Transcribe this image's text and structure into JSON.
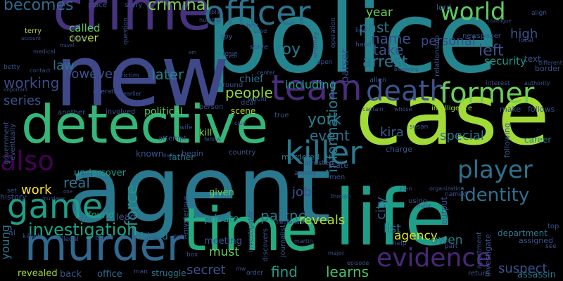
{
  "background": "#000000",
  "colormap": "viridis",
  "words": [
    {
      "text": "police",
      "color": "#25858e",
      "vertical": false
    },
    {
      "text": "agent",
      "color": "#2a788e",
      "vertical": false
    },
    {
      "text": "new",
      "color": "#3f4889",
      "vertical": false
    },
    {
      "text": "case",
      "color": "#a2da37",
      "vertical": false
    },
    {
      "text": "life",
      "color": "#1f9e89",
      "vertical": false
    },
    {
      "text": "time",
      "color": "#25ab82",
      "vertical": false
    },
    {
      "text": "detective",
      "color": "#35b779",
      "vertical": false
    },
    {
      "text": "crime",
      "color": "#46327e",
      "vertical": false
    },
    {
      "text": "murder",
      "color": "#31688e",
      "vertical": false
    },
    {
      "text": "killer",
      "color": "#2a788e",
      "vertical": false
    },
    {
      "text": "game",
      "color": "#1f9e89",
      "vertical": false
    },
    {
      "text": "team",
      "color": "#472d7b",
      "vertical": false
    },
    {
      "text": "death",
      "color": "#3b528b",
      "vertical": false
    },
    {
      "text": "former",
      "color": "#6ece58",
      "vertical": false
    },
    {
      "text": "officer",
      "color": "#2c738e",
      "vertical": false
    },
    {
      "text": "world",
      "color": "#5ec962",
      "vertical": false
    },
    {
      "text": "evidence",
      "color": "#482878",
      "vertical": false
    },
    {
      "text": "player",
      "color": "#2c728e",
      "vertical": false
    },
    {
      "text": "also",
      "color": "#440154",
      "vertical": false
    },
    {
      "text": "identity",
      "color": "#2d708e",
      "vertical": false
    },
    {
      "text": "investigation",
      "color": "#20a486",
      "vertical": false
    },
    {
      "text": "criminal",
      "color": "#7ad151",
      "vertical": false
    },
    {
      "text": "becomes",
      "color": "#31688e",
      "vertical": false
    },
    {
      "text": "called",
      "color": "#5ec962",
      "vertical": false
    },
    {
      "text": "cover",
      "color": "#c2df23",
      "vertical": false
    },
    {
      "text": "however",
      "color": "#3b528b",
      "vertical": false
    },
    {
      "text": "later",
      "color": "#26828e",
      "vertical": false
    },
    {
      "text": "working",
      "color": "#3e4989",
      "vertical": false
    },
    {
      "text": "series",
      "color": "#3b528b",
      "vertical": false
    },
    {
      "text": "law",
      "color": "#2a788e",
      "vertical": false
    },
    {
      "text": "people",
      "color": "#8fd744",
      "vertical": false
    },
    {
      "text": "chief",
      "color": "#2c738e",
      "vertical": false
    },
    {
      "text": "including",
      "color": "#1fa187",
      "vertical": false
    },
    {
      "text": "roy",
      "color": "#287c8e",
      "vertical": false
    },
    {
      "text": "arrest",
      "color": "#2c738e",
      "vertical": false
    },
    {
      "text": "take",
      "color": "#3b528b",
      "vertical": false
    },
    {
      "text": "name",
      "color": "#3b528b",
      "vertical": false
    },
    {
      "text": "past",
      "color": "#2a788e",
      "vertical": false
    },
    {
      "text": "year",
      "color": "#6ece58",
      "vertical": false
    },
    {
      "text": "york",
      "color": "#287d8e",
      "vertical": false
    },
    {
      "text": "event",
      "color": "#2c728e",
      "vertical": false
    },
    {
      "text": "kira",
      "color": "#365c8d",
      "vertical": false
    },
    {
      "text": "special",
      "color": "#2a788e",
      "vertical": false
    },
    {
      "text": "left",
      "color": "#3b528b",
      "vertical": false
    },
    {
      "text": "high",
      "color": "#3b528b",
      "vertical": false
    },
    {
      "text": "security",
      "color": "#1e9b8a",
      "vertical": false
    },
    {
      "text": "personal",
      "color": "#3e4989",
      "vertical": false
    },
    {
      "text": "information",
      "color": "#287c8e",
      "vertical": true
    },
    {
      "text": "parser",
      "color": "#3e4989",
      "vertical": true
    },
    {
      "text": "city",
      "color": "#365c8d",
      "vertical": true
    },
    {
      "text": "force",
      "color": "#21918c",
      "vertical": true
    },
    {
      "text": "work",
      "color": "#fde725",
      "vertical": false
    },
    {
      "text": "real",
      "color": "#2c728e",
      "vertical": false
    },
    {
      "text": "job",
      "color": "#3b528b",
      "vertical": false
    },
    {
      "text": "partner",
      "color": "#2a788e",
      "vertical": false
    },
    {
      "text": "reveals",
      "color": "#b5de2b",
      "vertical": false
    },
    {
      "text": "list",
      "color": "#2c728e",
      "vertical": false
    },
    {
      "text": "agency",
      "color": "#dde318",
      "vertical": false
    },
    {
      "text": "owen",
      "color": "#287d8e",
      "vertical": false
    },
    {
      "text": "suspect",
      "color": "#3b528b",
      "vertical": false
    },
    {
      "text": "secret",
      "color": "#3b528b",
      "vertical": false
    },
    {
      "text": "must",
      "color": "#6ece58",
      "vertical": false
    },
    {
      "text": "find",
      "color": "#1f9e89",
      "vertical": false
    },
    {
      "text": "learns",
      "color": "#4ac16d",
      "vertical": false
    },
    {
      "text": "young",
      "color": "#2a788e",
      "vertical": true
    },
    {
      "text": "history",
      "color": "#3b528b",
      "vertical": false
    },
    {
      "text": "undercover",
      "color": "#1f9e89",
      "vertical": false
    },
    {
      "text": "known",
      "color": "#3b528b",
      "vertical": false
    },
    {
      "text": "father",
      "color": "#287c8e",
      "vertical": false
    },
    {
      "text": "murdered",
      "color": "#2a788e",
      "vertical": false
    },
    {
      "text": "scene",
      "color": "#b5de2b",
      "vertical": false
    },
    {
      "text": "political",
      "color": "#5ec962",
      "vertical": false
    },
    {
      "text": "kill",
      "color": "#8fd744",
      "vertical": false
    },
    {
      "text": "private",
      "color": "#21918c",
      "vertical": false
    },
    {
      "text": "meeting",
      "color": "#3b528b",
      "vertical": false
    },
    {
      "text": "friend",
      "color": "#2a788e",
      "vertical": false
    },
    {
      "text": "found",
      "color": "#1f9e89",
      "vertical": false
    },
    {
      "text": "lead",
      "color": "#3b528b",
      "vertical": false
    },
    {
      "text": "given",
      "color": "#6ece58",
      "vertical": false
    },
    {
      "text": "end",
      "color": "#3b528b",
      "vertical": false
    },
    {
      "text": "office",
      "color": "#31688e",
      "vertical": false
    },
    {
      "text": "revealed",
      "color": "#9fda3a",
      "vertical": false
    },
    {
      "text": "back",
      "color": "#3b528b",
      "vertical": false
    },
    {
      "text": "struggle",
      "color": "#2a788e",
      "vertical": false
    },
    {
      "text": "department",
      "color": "#2a788e",
      "vertical": false
    },
    {
      "text": "assigned",
      "color": "#3b528b",
      "vertical": false
    },
    {
      "text": "assassin",
      "color": "#2a788e",
      "vertical": false
    },
    {
      "text": "career",
      "color": "#2a788e",
      "vertical": false
    },
    {
      "text": "follows",
      "color": "#3b528b",
      "vertical": false
    },
    {
      "text": "make",
      "color": "#3b528b",
      "vertical": false
    },
    {
      "text": "intelligence",
      "color": "#a2da37",
      "vertical": false
    },
    {
      "text": "interest",
      "color": "#3b528b",
      "vertical": false
    },
    {
      "text": "text",
      "color": "#3b528b",
      "vertical": false
    },
    {
      "text": "border",
      "color": "#3b528b",
      "vertical": false
    },
    {
      "text": "newspaper",
      "color": "#3b528b",
      "vertical": false
    },
    {
      "text": "lord",
      "color": "#3b528b",
      "vertical": false
    },
    {
      "text": "terry",
      "color": "#b5de2b",
      "vertical": false
    },
    {
      "text": "place",
      "color": "#3b528b",
      "vertical": false
    },
    {
      "text": "story",
      "color": "#3b528b",
      "vertical": false
    },
    {
      "text": "public",
      "color": "#3b528b",
      "vertical": false
    },
    {
      "text": "number",
      "color": "#3b528b",
      "vertical": false
    },
    {
      "text": "spy",
      "color": "#3b528b",
      "vertical": false
    },
    {
      "text": "first",
      "color": "#3b528b",
      "vertical": false
    },
    {
      "text": "used",
      "color": "#3b528b",
      "vertical": false
    },
    {
      "text": "rosie",
      "color": "#3b528b",
      "vertical": false
    },
    {
      "text": "even",
      "color": "#3b528b",
      "vertical": false
    },
    {
      "text": "solve",
      "color": "#3b528b",
      "vertical": false
    },
    {
      "text": "around",
      "color": "#3b528b",
      "vertical": false
    },
    {
      "text": "deal",
      "color": "#3b528b",
      "vertical": false
    },
    {
      "text": "would",
      "color": "#3b528b",
      "vertical": false
    },
    {
      "text": "true",
      "color": "#3b528b",
      "vertical": false
    },
    {
      "text": "captain",
      "color": "#3b528b",
      "vertical": false
    },
    {
      "text": "whose",
      "color": "#3b528b",
      "vertical": false
    },
    {
      "text": "susan",
      "color": "#3b528b",
      "vertical": false
    },
    {
      "text": "another",
      "color": "#3b528b",
      "vertical": false
    },
    {
      "text": "involved",
      "color": "#3b528b",
      "vertical": false
    },
    {
      "text": "earlier",
      "color": "#3b528b",
      "vertical": false
    },
    {
      "text": "operative",
      "color": "#3b528b",
      "vertical": false
    },
    {
      "text": "victim",
      "color": "#3b528b",
      "vertical": false
    },
    {
      "text": "medical",
      "color": "#3b528b",
      "vertical": false
    },
    {
      "text": "betty",
      "color": "#3b528b",
      "vertical": false
    },
    {
      "text": "contact",
      "color": "#3b528b",
      "vertical": false
    },
    {
      "text": "important",
      "color": "#3b528b",
      "vertical": false
    },
    {
      "text": "government",
      "color": "#3b528b",
      "vertical": true
    },
    {
      "text": "eventually",
      "color": "#3b528b",
      "vertical": true
    },
    {
      "text": "set",
      "color": "#3b528b",
      "vertical": false
    },
    {
      "text": "al",
      "color": "#3b528b",
      "vertical": false
    },
    {
      "text": "killed",
      "color": "#3b528b",
      "vertical": false
    },
    {
      "text": "illegal",
      "color": "#3b528b",
      "vertical": false
    },
    {
      "text": "black",
      "color": "#3b528b",
      "vertical": false
    },
    {
      "text": "right",
      "color": "#3b528b",
      "vertical": false
    },
    {
      "text": "box",
      "color": "#3b528b",
      "vertical": false
    },
    {
      "text": "man",
      "color": "#3b528b",
      "vertical": false
    },
    {
      "text": "mw",
      "color": "#3b528b",
      "vertical": false
    },
    {
      "text": "order",
      "color": "#3b528b",
      "vertical": false
    },
    {
      "text": "major",
      "color": "#3b528b",
      "vertical": false
    },
    {
      "text": "episode",
      "color": "#3b528b",
      "vertical": false
    },
    {
      "text": "return",
      "color": "#3b528b",
      "vertical": false
    },
    {
      "text": "see",
      "color": "#3b528b",
      "vertical": false
    },
    {
      "text": "top",
      "color": "#3b528b",
      "vertical": false
    },
    {
      "text": "help",
      "color": "#3b528b",
      "vertical": false
    },
    {
      "text": "part",
      "color": "#3b528b",
      "vertical": false
    },
    {
      "text": "using",
      "color": "#3b528b",
      "vertical": false
    },
    {
      "text": "plan",
      "color": "#3b528b",
      "vertical": false
    },
    {
      "text": "meet",
      "color": "#3b528b",
      "vertical": false
    },
    {
      "text": "named",
      "color": "#3b528b",
      "vertical": false
    },
    {
      "text": "organization",
      "color": "#3b528b",
      "vertical": false
    },
    {
      "text": "lieutenant",
      "color": "#3b528b",
      "vertical": false
    },
    {
      "text": "men",
      "color": "#3b528b",
      "vertical": false
    },
    {
      "text": "among",
      "color": "#3b528b",
      "vertical": false
    },
    {
      "text": "state",
      "color": "#3b528b",
      "vertical": false
    },
    {
      "text": "arrested",
      "color": "#3b528b",
      "vertical": false
    },
    {
      "text": "country",
      "color": "#3b528b",
      "vertical": false
    },
    {
      "text": "charge",
      "color": "#3b528b",
      "vertical": false
    },
    {
      "text": "begin",
      "color": "#3b528b",
      "vertical": false
    },
    {
      "text": "attempt",
      "color": "#3b528b",
      "vertical": false
    },
    {
      "text": "wife",
      "color": "#3b528b",
      "vertical": false
    },
    {
      "text": "fellow",
      "color": "#3b528b",
      "vertical": false
    },
    {
      "text": "clue",
      "color": "#3b528b",
      "vertical": false
    },
    {
      "text": "final",
      "color": "#3b528b",
      "vertical": false
    },
    {
      "text": "person",
      "color": "#3b528b",
      "vertical": false
    },
    {
      "text": "investigate",
      "color": "#3b528b",
      "vertical": true
    },
    {
      "text": "apartment",
      "color": "#3b528b",
      "vertical": true
    },
    {
      "text": "output",
      "color": "#3b528b",
      "vertical": true
    },
    {
      "text": "following",
      "color": "#3b528b",
      "vertical": true
    },
    {
      "text": "relationship",
      "color": "#3b528b",
      "vertical": true
    },
    {
      "text": "investigator",
      "color": "#3b528b",
      "vertical": true
    },
    {
      "text": "discovers",
      "color": "#3b528b",
      "vertical": true
    },
    {
      "text": "journalist",
      "color": "#3b528b",
      "vertical": true
    },
    {
      "text": "mysterious",
      "color": "#3b528b",
      "vertical": true
    },
    {
      "text": "operation",
      "color": "#3b528b",
      "vertical": true
    },
    {
      "text": "attorney",
      "color": "#3b528b",
      "vertical": true
    },
    {
      "text": "question",
      "color": "#3b528b",
      "vertical": true
    },
    {
      "text": "account",
      "color": "#3b528b",
      "vertical": false
    },
    {
      "text": "travel",
      "color": "#3b528b",
      "vertical": false
    },
    {
      "text": "flash",
      "color": "#3b528b",
      "vertical": false
    },
    {
      "text": "line",
      "color": "#3b528b",
      "vertical": false
    },
    {
      "text": "hand",
      "color": "#3b528b",
      "vertical": false
    },
    {
      "text": "open",
      "color": "#3b528b",
      "vertical": false
    },
    {
      "text": "allen",
      "color": "#3b528b",
      "vertical": false
    },
    {
      "text": "center",
      "color": "#3b528b",
      "vertical": false
    },
    {
      "text": "colleague",
      "color": "#3b528b",
      "vertical": false
    },
    {
      "text": "align",
      "color": "#3b528b",
      "vertical": false
    },
    {
      "text": "local",
      "color": "#3b528b",
      "vertical": false
    },
    {
      "text": "different",
      "color": "#3b528b",
      "vertical": false
    },
    {
      "text": "authority",
      "color": "#3b528b",
      "vertical": false
    },
    {
      "text": "becoming",
      "color": "#3b528b",
      "vertical": false
    },
    {
      "text": "em",
      "color": "#3b528b",
      "vertical": false
    },
    {
      "text": "one",
      "color": "#3b528b",
      "vertical": false
    },
    {
      "text": "murderer",
      "color": "#3b528b",
      "vertical": false
    },
    {
      "text": "though",
      "color": "#3b528b",
      "vertical": false
    },
    {
      "text": "martin",
      "color": "#3b528b",
      "vertical": false
    }
  ]
}
